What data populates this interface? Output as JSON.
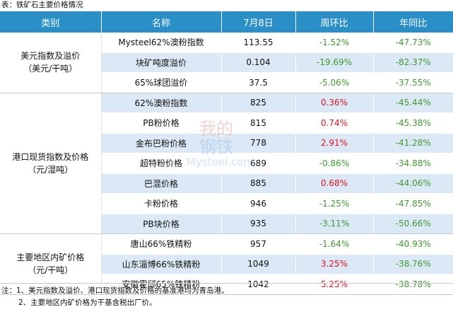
{
  "caption": "表：铁矿石主要价格情况",
  "headers": [
    "类别",
    "名称",
    "7月8日",
    "周环比",
    "年同比"
  ],
  "groups": [
    {
      "category_line1": "美元指数及溢价",
      "category_line2": "（美元/干吨）",
      "rows": [
        {
          "name": "Mysteel62%澳粉指数",
          "price": "113.55",
          "wow": "-1.52%",
          "yoy": "-47.73%"
        },
        {
          "name": "块矿吨度溢价",
          "price": "0.104",
          "wow": "-19.69%",
          "yoy": "-82.37%"
        },
        {
          "name": "65%球团溢价",
          "price": "37.5",
          "wow": "-5.06%",
          "yoy": "-37.55%"
        }
      ]
    },
    {
      "category_line1": "港口现货指数及价格",
      "category_line2": "（元/湿吨）",
      "rows": [
        {
          "name": "62%澳粉指数",
          "price": "825",
          "wow": "0.36%",
          "yoy": "-45.44%"
        },
        {
          "name": "PB粉价格",
          "price": "815",
          "wow": "0.74%",
          "yoy": "-45.38%"
        },
        {
          "name": "金布巴粉价格",
          "price": "778",
          "wow": "2.91%",
          "yoy": "-41.28%"
        },
        {
          "name": "超特粉价格",
          "price": "689",
          "wow": "-0.86%",
          "yoy": "-34.88%"
        },
        {
          "name": "巴混价格",
          "price": "885",
          "wow": "0.68%",
          "yoy": "-44.06%"
        },
        {
          "name": "卡粉价格",
          "price": "946",
          "wow": "-1.25%",
          "yoy": "-47.85%"
        },
        {
          "name": "PB块价格",
          "price": "935",
          "wow": "-3.11%",
          "yoy": "-50.66%"
        }
      ]
    },
    {
      "category_line1": "主要地区内矿价格",
      "category_line2": "（元/干吨）",
      "rows": [
        {
          "name": "唐山66%铁精粉",
          "price": "957",
          "wow": "-1.64%",
          "yoy": "-40.93%"
        },
        {
          "name": "山东淄博66%铁精粉",
          "price": "1049",
          "wow": "3.25%",
          "yoy": "-38.76%"
        },
        {
          "name": "安徽霍邱65%铁精粉",
          "price": "1042",
          "wow": "5.25%",
          "yoy": "-38.78%"
        }
      ]
    }
  ],
  "notes": [
    "注：1、美元指数及溢价、港口现货指数及价格的基准港均为青岛港。",
    "2、主要地区内矿价格为干基含税出厂价。"
  ],
  "watermark": {
    "line1": "我的",
    "line2": "钢铁",
    "line3": "Mysteel.com"
  },
  "colors": {
    "header": "#2a8fc6",
    "row_alt": "#dbe8f5",
    "positive": "#e0141e",
    "negative": "#3d9a2e"
  }
}
